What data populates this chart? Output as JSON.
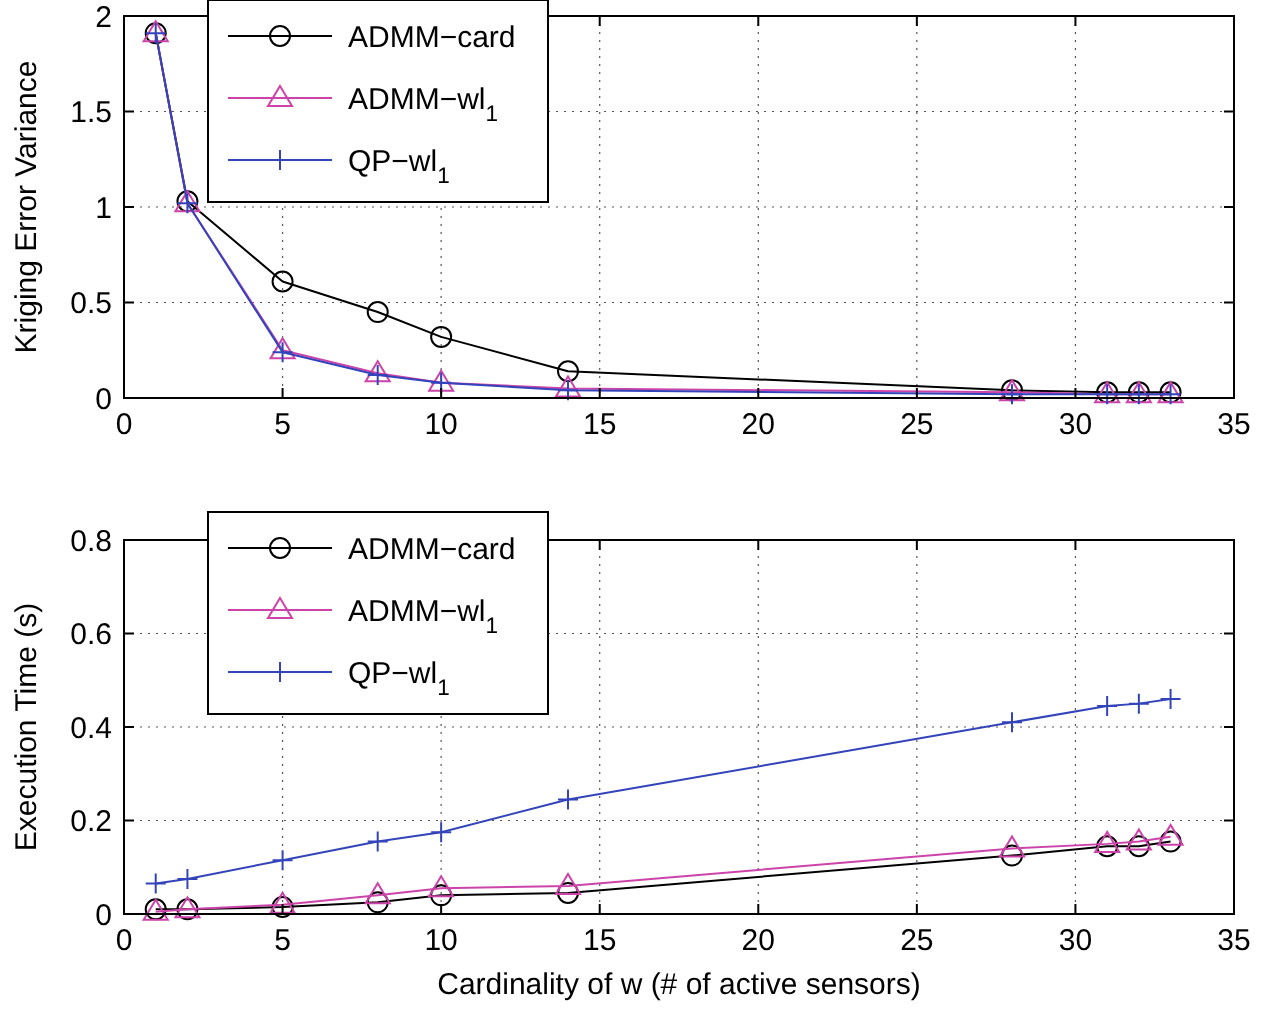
{
  "chart_data": [
    {
      "type": "line",
      "ylabel": "Kriging Error Variance",
      "x": [
        1,
        2,
        5,
        8,
        10,
        14,
        28,
        31,
        32,
        33
      ],
      "xlim": [
        0,
        35
      ],
      "xticks": [
        0,
        5,
        10,
        15,
        20,
        25,
        30,
        35
      ],
      "ylim": [
        0,
        2
      ],
      "yticks": [
        0,
        0.5,
        1,
        1.5,
        2
      ],
      "grid": true,
      "legend": "top left",
      "line_style": "solid",
      "series": [
        {
          "name": "ADMM−card",
          "color": "#000000",
          "marker": "circle",
          "values": [
            1.91,
            1.03,
            0.61,
            0.45,
            0.32,
            0.14,
            0.04,
            0.03,
            0.03,
            0.03
          ]
        },
        {
          "name": "ADMM−wl$_{1}$",
          "color": "#cc44aa",
          "marker": "triangle",
          "values": [
            1.91,
            1.02,
            0.25,
            0.13,
            0.08,
            0.05,
            0.03,
            0.02,
            0.02,
            0.02
          ]
        },
        {
          "name": "QP−wl$_{1}$",
          "color": "#3344bb",
          "marker": "cross",
          "values": [
            1.91,
            1.02,
            0.24,
            0.12,
            0.08,
            0.04,
            0.02,
            0.02,
            0.02,
            0.02
          ]
        }
      ]
    },
    {
      "type": "line",
      "xlabel": "Cardinality of w (# of active sensors)",
      "ylabel": "Execution Time (s)",
      "x": [
        1,
        2,
        5,
        8,
        10,
        14,
        28,
        31,
        32,
        33
      ],
      "xlim": [
        0,
        35
      ],
      "xticks": [
        0,
        5,
        10,
        15,
        20,
        25,
        30,
        35
      ],
      "ylim": [
        0,
        0.8
      ],
      "yticks": [
        0,
        0.2,
        0.4,
        0.6,
        0.8
      ],
      "grid": true,
      "legend": "top left",
      "line_style": "solid",
      "series": [
        {
          "name": "ADMM−card",
          "color": "#000000",
          "marker": "circle",
          "values": [
            0.01,
            0.01,
            0.015,
            0.025,
            0.04,
            0.045,
            0.125,
            0.145,
            0.145,
            0.155
          ]
        },
        {
          "name": "ADMM−wl$_{1}$",
          "color": "#cc44aa",
          "marker": "triangle",
          "values": [
            0.005,
            0.01,
            0.02,
            0.04,
            0.055,
            0.06,
            0.14,
            0.15,
            0.155,
            0.165
          ]
        },
        {
          "name": "QP−wl$_{1}$",
          "color": "#3344bb",
          "marker": "cross",
          "values": [
            0.065,
            0.075,
            0.115,
            0.155,
            0.175,
            0.245,
            0.41,
            0.445,
            0.45,
            0.46
          ]
        }
      ]
    }
  ]
}
